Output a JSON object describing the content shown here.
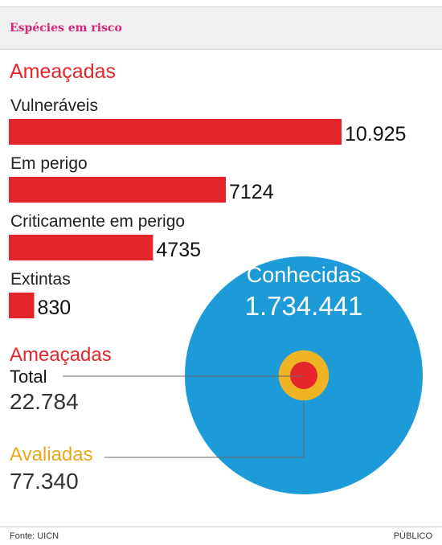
{
  "header": {
    "title": "Espécies em risco"
  },
  "chart_data": {
    "type": "bar",
    "title": "Ameaçadas",
    "categories": [
      "Vulneráveis",
      "Em perigo",
      "Criticamente em perigo",
      "Extintas"
    ],
    "values": [
      10925,
      7124,
      4735,
      830
    ],
    "value_labels": [
      "10.925",
      "7124",
      "4735",
      "830"
    ],
    "bar_color": "#e4262c"
  },
  "circles": {
    "known": {
      "label": "Conhecidas",
      "value": 1734441,
      "value_text": "1.734.441",
      "color": "#1d9bd9"
    },
    "evaluated": {
      "label": "Avaliadas",
      "value": 77340,
      "value_text": "77.340",
      "color": "#f0b323"
    },
    "threatened": {
      "label": "Ameaçadas",
      "sublabel": "Total",
      "value": 22784,
      "value_text": "22.784",
      "color": "#e4262c"
    }
  },
  "footer": {
    "source": "Fonte: UICN",
    "brand": "PÚBLICO"
  }
}
